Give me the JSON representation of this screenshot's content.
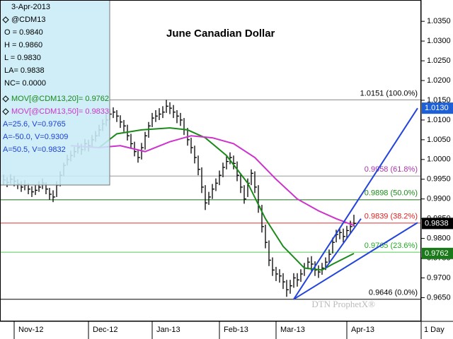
{
  "chart_data": {
    "type": "ohlc",
    "title": "June Canadian Dollar",
    "watermark": "DTN ProphetX®",
    "period": "1 Day",
    "info": [
      "3-Apr-2013",
      "@CDM13",
      "O = 0.9840",
      "H = 0.9860",
      "L = 0.9830",
      "LA= 0.9838",
      "NC= 0.0000"
    ],
    "info_extra": [
      "A=25.6, V=0.9765",
      "A=-50.0, V=0.9309",
      "A=50.5, V=0.9832"
    ],
    "bar_color": "#000000",
    "high": [
      0.9962,
      0.9955,
      0.9963,
      0.9958,
      0.995,
      0.9945,
      0.9948,
      0.994,
      0.9932,
      0.9935,
      0.9945,
      0.9952,
      0.9942,
      0.9928,
      0.9922,
      0.9945,
      0.997,
      0.9992,
      1.0012,
      1.0022,
      1.0032,
      1.0042,
      1.004,
      1.0052,
      1.005,
      1.0062,
      1.0072,
      1.0088,
      1.0102,
      1.0115,
      1.0128,
      1.0132,
      1.0125,
      1.0112,
      1.01,
      1.0088,
      1.0065,
      1.0045,
      1.0025,
      1.0042,
      1.007,
      1.0095,
      1.0118,
      1.0125,
      1.013,
      1.0135,
      1.0151,
      1.0145,
      1.0138,
      1.0125,
      1.0118,
      1.0105,
      1.008,
      1.0055,
      1.0035,
      1.001,
      0.998,
      0.9935,
      0.9918,
      0.9938,
      0.9952,
      0.9972,
      0.9992,
      1.0008,
      1.0018,
      1.001,
      0.9995,
      0.9965,
      0.9935,
      0.9952,
      0.9975,
      0.997,
      0.9935,
      0.9885,
      0.9835,
      0.9795,
      0.9752,
      0.9728,
      0.9722,
      0.9712,
      0.9695,
      0.9695,
      0.9712,
      0.9712,
      0.9722,
      0.9738,
      0.9752,
      0.9755,
      0.9742,
      0.9732,
      0.9738,
      0.9752,
      0.9772,
      0.9802,
      0.9822,
      0.9828,
      0.9825,
      0.9832,
      0.9845,
      0.986
    ],
    "low": [
      0.9935,
      0.993,
      0.9938,
      0.9932,
      0.9925,
      0.9918,
      0.9922,
      0.9912,
      0.9905,
      0.991,
      0.9918,
      0.9925,
      0.9912,
      0.9898,
      0.9892,
      0.9905,
      0.9932,
      0.9958,
      0.9985,
      0.9995,
      1.0005,
      1.0015,
      1.0012,
      1.0022,
      1.002,
      1.0032,
      1.0045,
      1.0058,
      1.0072,
      1.0085,
      1.01,
      1.0105,
      1.0095,
      1.008,
      1.007,
      1.0048,
      1.0028,
      1.0008,
      0.9992,
      1.0,
      1.0025,
      1.0055,
      1.0082,
      1.0095,
      1.01,
      1.0105,
      1.0118,
      1.0115,
      1.0105,
      1.0092,
      1.0085,
      1.0062,
      1.0035,
      1.0015,
      0.999,
      0.996,
      0.9915,
      0.9872,
      0.9885,
      0.99,
      0.992,
      0.9935,
      0.9955,
      0.9975,
      0.9988,
      0.9975,
      0.9945,
      0.9915,
      0.9888,
      0.9905,
      0.9935,
      0.9915,
      0.9865,
      0.9815,
      0.9775,
      0.973,
      0.9705,
      0.9692,
      0.9688,
      0.9672,
      0.9652,
      0.966,
      0.9675,
      0.9678,
      0.969,
      0.9705,
      0.9722,
      0.9718,
      0.9705,
      0.97,
      0.9708,
      0.972,
      0.9738,
      0.9762,
      0.979,
      0.9798,
      0.979,
      0.98,
      0.9812,
      0.983
    ],
    "close": [
      0.9948,
      0.9942,
      0.995,
      0.9945,
      0.9938,
      0.993,
      0.9935,
      0.9925,
      0.9918,
      0.9922,
      0.993,
      0.994,
      0.9925,
      0.9912,
      0.9905,
      0.9935,
      0.996,
      0.9985,
      1.0,
      1.001,
      1.002,
      1.003,
      1.0025,
      1.004,
      1.0035,
      1.005,
      1.006,
      1.0075,
      1.009,
      1.01,
      1.0115,
      1.012,
      1.011,
      1.0095,
      1.0085,
      1.006,
      1.004,
      1.002,
      1.0005,
      1.003,
      1.006,
      1.0085,
      1.0105,
      1.011,
      1.0115,
      1.012,
      1.0135,
      1.013,
      1.012,
      1.011,
      1.01,
      1.0075,
      1.005,
      1.003,
      1.0005,
      0.9975,
      0.993,
      0.989,
      0.9905,
      0.9925,
      0.994,
      0.996,
      0.998,
      0.9995,
      1.0005,
      0.999,
      0.996,
      0.993,
      0.99,
      0.994,
      0.9965,
      0.993,
      0.988,
      0.983,
      0.979,
      0.9745,
      0.972,
      0.971,
      0.9705,
      0.969,
      0.967,
      0.968,
      0.97,
      0.9695,
      0.971,
      0.9725,
      0.974,
      0.9735,
      0.972,
      0.9715,
      0.9725,
      0.974,
      0.976,
      0.979,
      0.981,
      0.9815,
      0.9805,
      0.982,
      0.983,
      0.9838
    ],
    "series": [
      {
        "name": "MOV[@CDM13,20]= 0.9762",
        "color": "#1a8a1a",
        "x": [
          27,
          32,
          39,
          47,
          52,
          57,
          63,
          69,
          74,
          79,
          85,
          90,
          93,
          99
        ],
        "values": [
          1.003,
          1.0065,
          1.0075,
          1.008,
          1.0075,
          1.0055,
          1.001,
          0.994,
          0.985,
          0.978,
          0.9725,
          0.972,
          0.9735,
          0.9762
        ]
      },
      {
        "name": "MOV[@CDM13,50]= 0.9833",
        "color": "#cc33cc",
        "x": [
          19,
          27,
          33,
          40,
          47,
          53,
          59,
          65,
          71,
          77,
          83,
          89,
          94,
          99
        ],
        "values": [
          1.0035,
          1.003,
          1.0035,
          1.002,
          1.0045,
          1.006,
          1.0055,
          1.004,
          1.0005,
          0.995,
          0.99,
          0.987,
          0.985,
          0.9833
        ]
      }
    ],
    "levels": [
      {
        "value": 1.0151,
        "label": "1.0151 (100.0%)",
        "color": "#000000",
        "line_color": "#888888"
      },
      {
        "value": 0.9958,
        "label": "0.9958 (61.8%)",
        "color": "#aa33aa",
        "line_color": "#999999"
      },
      {
        "value": 0.9898,
        "label": "0.9898 (50.0%)",
        "color": "#1a8a1a",
        "line_color": "#1a6a1a"
      },
      {
        "value": 0.9839,
        "label": "0.9839 (38.2%)",
        "color": "#dd2222",
        "line_color": "#dd3333"
      },
      {
        "value": 0.9765,
        "label": "0.9765 (23.6%)",
        "color": "#22aa22",
        "line_color": "#55cc55"
      },
      {
        "value": 0.9646,
        "label": "0.9646 (0.0%)",
        "color": "#000000",
        "line_color": "#000000"
      }
    ],
    "trendlines": [
      {
        "color": "#2244dd",
        "x": [
          82,
          117
        ],
        "values": [
          0.9646,
          1.013
        ]
      },
      {
        "color": "#2244dd",
        "x": [
          82,
          117
        ],
        "values": [
          0.9646,
          0.984
        ]
      },
      {
        "color": "#2244dd",
        "x": [
          91,
          101
        ],
        "values": [
          0.9725,
          0.985
        ]
      }
    ],
    "markers": [
      {
        "value": 1.013,
        "label": "1.0130",
        "color": "#1c5fd6"
      },
      {
        "value": 0.9838,
        "label": "0.9838",
        "color": "#000000"
      },
      {
        "value": 0.9762,
        "label": "0.9762",
        "color": "#1a7a1a"
      }
    ],
    "xlim": [
      -1,
      118
    ],
    "xticks": [
      {
        "value": 3,
        "label": "Nov-12"
      },
      {
        "value": 24,
        "label": "Dec-12"
      },
      {
        "value": 42,
        "label": "Jan-13"
      },
      {
        "value": 61,
        "label": "Feb-13"
      },
      {
        "value": 77,
        "label": "Mar-13"
      },
      {
        "value": 97,
        "label": "Apr-13"
      }
    ],
    "ylim": [
      0.959,
      1.0404
    ],
    "yticks": [
      {
        "value": 1.035,
        "label": "1.0350"
      },
      {
        "value": 1.03,
        "label": "1.0300"
      },
      {
        "value": 1.025,
        "label": "1.0250"
      },
      {
        "value": 1.02,
        "label": "1.0200"
      },
      {
        "value": 1.015,
        "label": "1.0150"
      },
      {
        "value": 1.01,
        "label": "1.0100"
      },
      {
        "value": 1.005,
        "label": "1.0050"
      },
      {
        "value": 1.0,
        "label": "1.0000"
      },
      {
        "value": 0.995,
        "label": "0.9950"
      },
      {
        "value": 0.99,
        "label": "0.9900"
      },
      {
        "value": 0.985,
        "label": "0.9850"
      },
      {
        "value": 0.98,
        "label": "0.9800"
      },
      {
        "value": 0.975,
        "label": "0.9750"
      },
      {
        "value": 0.97,
        "label": "0.9700"
      },
      {
        "value": 0.965,
        "label": "0.9650"
      }
    ]
  }
}
